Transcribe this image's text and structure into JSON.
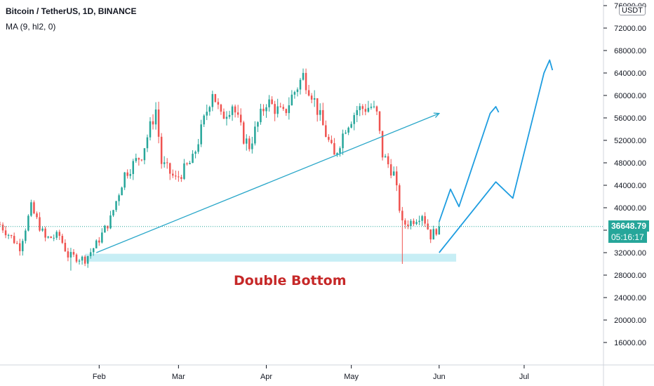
{
  "header": {
    "symbol": "Bitcoin / TetherUS, 1D, BINANCE",
    "indicator": "MA (9, hl2, 0)"
  },
  "price_axis_unit": "USDT",
  "last_price": "36648.79",
  "countdown": "05:16:17",
  "annotation": "Double Bottom",
  "colors": {
    "up": "#26a69a",
    "down": "#ef5350",
    "drawing": "#2aa7c9",
    "projection": "#1e9de0",
    "zone": "#c7eef5",
    "annotation": "#c62828",
    "badge": "#26a69a"
  },
  "chart_data": {
    "type": "candlestick",
    "y_ticks": [
      "16000.00",
      "20000.00",
      "24000.00",
      "28000.00",
      "32000.00",
      "36000.00",
      "40000.00",
      "44000.00",
      "48000.00",
      "52000.00",
      "56000.00",
      "60000.00",
      "64000.00",
      "68000.00",
      "72000.00",
      "76000.00"
    ],
    "x_ticks": [
      "Feb",
      "Mar",
      "Apr",
      "May",
      "Jun",
      "Jul"
    ],
    "ylim": [
      12000,
      77000
    ],
    "x_start": "2020-12-28",
    "x_end": "2021-07-29",
    "last_price": 36648.79,
    "anchors": [
      [
        "2020-12-28",
        37000
      ],
      [
        "2021-01-04",
        33000
      ],
      [
        "2021-01-08",
        40000
      ],
      [
        "2021-01-13",
        34500
      ],
      [
        "2021-01-18",
        35000
      ],
      [
        "2021-01-21",
        31500
      ],
      [
        "2021-01-27",
        30800
      ],
      [
        "2021-01-31",
        33500
      ],
      [
        "2021-02-05",
        38000
      ],
      [
        "2021-02-10",
        46000
      ],
      [
        "2021-02-16",
        49500
      ],
      [
        "2021-02-21",
        57500
      ],
      [
        "2021-02-23",
        48000
      ],
      [
        "2021-02-28",
        45000
      ],
      [
        "2021-03-06",
        48500
      ],
      [
        "2021-03-10",
        55500
      ],
      [
        "2021-03-13",
        61000
      ],
      [
        "2021-03-16",
        56000
      ],
      [
        "2021-03-20",
        58500
      ],
      [
        "2021-03-24",
        52500
      ],
      [
        "2021-03-26",
        51000
      ],
      [
        "2021-04-01",
        59000
      ],
      [
        "2021-04-07",
        56500
      ],
      [
        "2021-04-10",
        59800
      ],
      [
        "2021-04-14",
        63500
      ],
      [
        "2021-04-17",
        60500
      ],
      [
        "2021-04-21",
        54500
      ],
      [
        "2021-04-25",
        49000
      ],
      [
        "2021-04-29",
        54500
      ],
      [
        "2021-05-03",
        57500
      ],
      [
        "2021-05-08",
        58000
      ],
      [
        "2021-05-10",
        56500
      ],
      [
        "2021-05-12",
        49500
      ],
      [
        "2021-05-16",
        46000
      ],
      [
        "2021-05-19",
        37000
      ],
      [
        "2021-05-22",
        37500
      ],
      [
        "2021-05-26",
        39000
      ],
      [
        "2021-05-29",
        35000
      ],
      [
        "2021-06-01",
        36648.79
      ]
    ],
    "spikes": [
      [
        "2021-05-19",
        30000
      ],
      [
        "2021-01-22",
        28800
      ]
    ],
    "drawings": {
      "trend_line": [
        [
          "2021-01-31",
          32000
        ],
        [
          "2021-06-01",
          56800
        ]
      ],
      "support_zone": {
        "x": [
          "2021-01-27",
          "2021-06-07"
        ],
        "y": [
          30400,
          31800
        ]
      },
      "projection_1": [
        [
          "2021-06-01",
          37500
        ],
        [
          "2021-06-05",
          43300
        ],
        [
          "2021-06-08",
          40200
        ],
        [
          "2021-06-19",
          56800
        ],
        [
          "2021-06-21",
          58000
        ],
        [
          "2021-06-22",
          57000
        ]
      ],
      "projection_2": [
        [
          "2021-06-01",
          32000
        ],
        [
          "2021-06-21",
          44600
        ],
        [
          "2021-06-27",
          41700
        ],
        [
          "2021-07-08",
          64000
        ],
        [
          "2021-07-10",
          66300
        ],
        [
          "2021-07-11",
          64500
        ]
      ]
    }
  }
}
